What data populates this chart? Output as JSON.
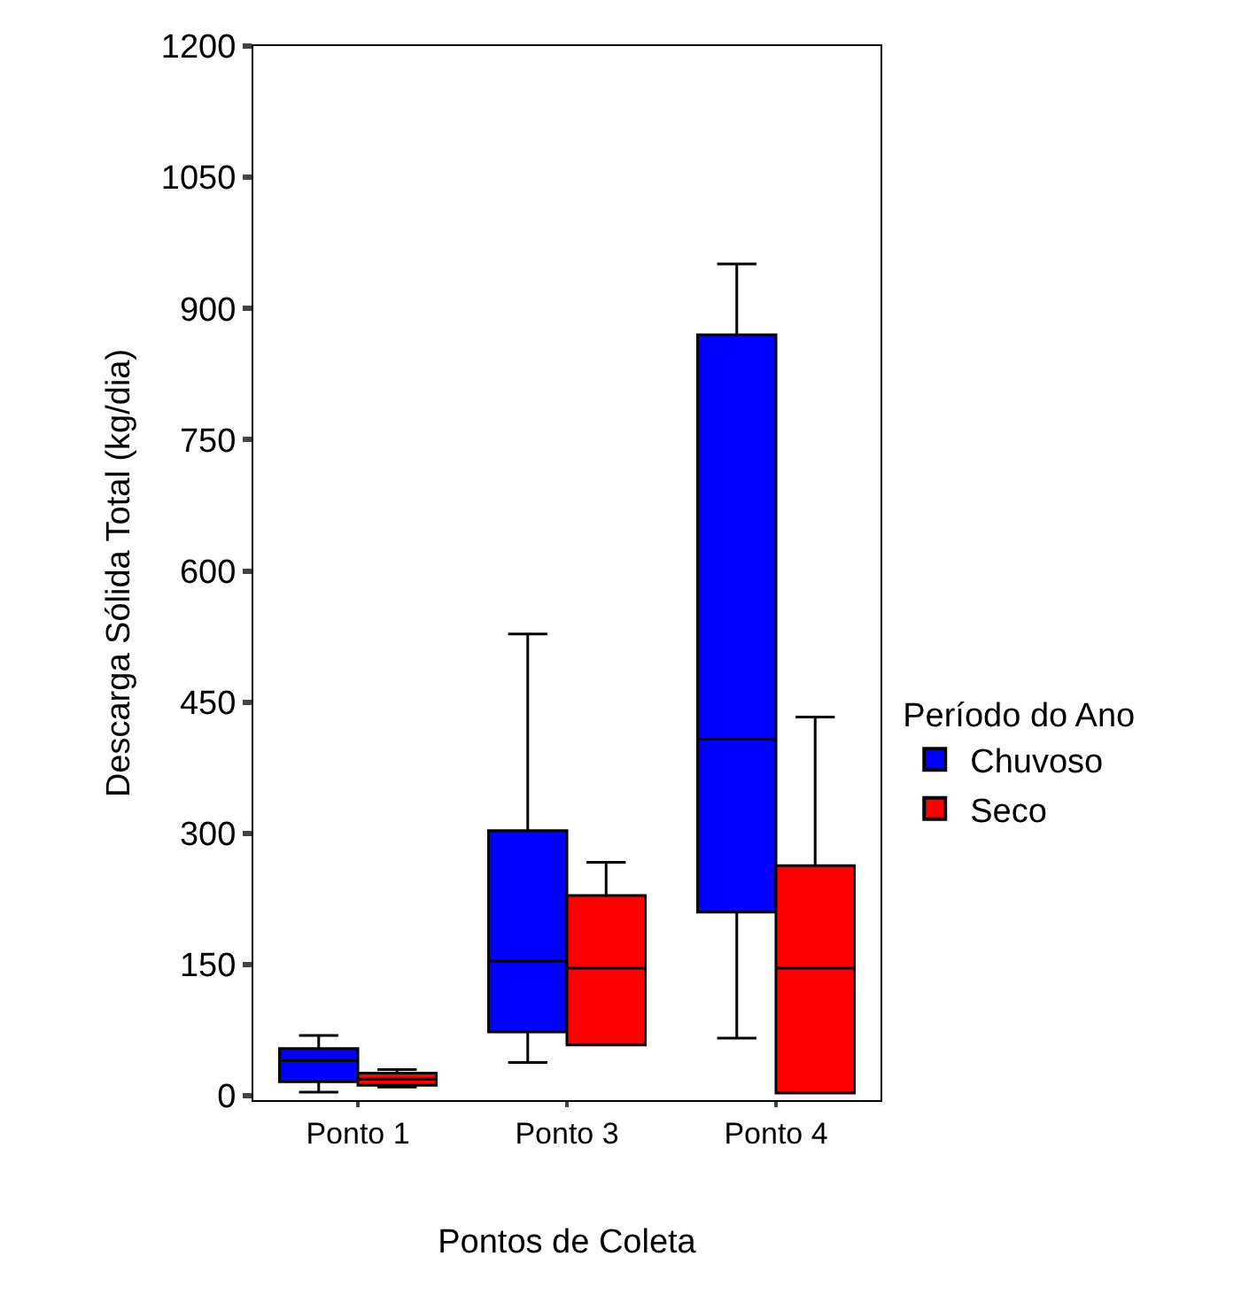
{
  "chart_data": {
    "type": "box",
    "xlabel": "Pontos de Coleta",
    "ylabel": "Descarga Sólida Total (kg/dia)",
    "legend_title": "Período do Ano",
    "categories": [
      "Ponto 1",
      "Ponto 3",
      "Ponto 4"
    ],
    "series": [
      {
        "name": "Chuvoso",
        "color": "#0000ff",
        "boxes": [
          {
            "low": 4,
            "q1": 16,
            "median": 40,
            "q3": 54,
            "high": 69
          },
          {
            "low": 38,
            "q1": 73,
            "median": 154,
            "q3": 303,
            "high": 528
          },
          {
            "low": 66,
            "q1": 210,
            "median": 408,
            "q3": 870,
            "high": 951
          }
        ]
      },
      {
        "name": "Seco",
        "color": "#ff0000",
        "boxes": [
          {
            "low": 10,
            "q1": 12,
            "median": 19,
            "q3": 26,
            "high": 30
          },
          {
            "low": 58,
            "q1": 58,
            "median": 146,
            "q3": 229,
            "high": 267
          },
          {
            "low": 3,
            "q1": 3,
            "median": 146,
            "q3": 263,
            "high": 433
          }
        ]
      }
    ],
    "ylim": [
      -5,
      1200
    ],
    "yticks": [
      0,
      150,
      300,
      450,
      600,
      750,
      900,
      1050,
      1200
    ],
    "legend": "right"
  }
}
